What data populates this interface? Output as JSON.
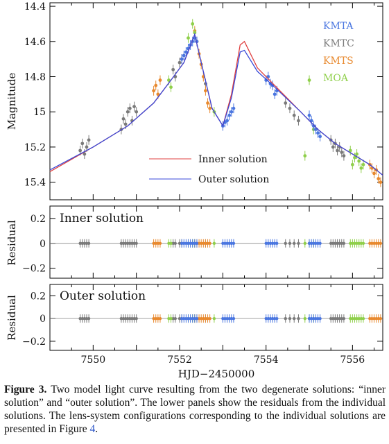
{
  "chart_data": {
    "type": "scatter",
    "xlabel": "HJD−2450000",
    "xlim": [
      7549.0,
      7556.7
    ],
    "xticks": [
      "7550",
      "7552",
      "7554",
      "7556"
    ],
    "xtick_values": [
      7550,
      7552,
      7554,
      7556
    ],
    "panels": [
      {
        "name": "light-curve",
        "ylabel": "Magnitude",
        "ylim": [
          15.5,
          14.38
        ],
        "yticks": [
          "14.4",
          "14.6",
          "14.8",
          "15",
          "15.2",
          "15.4"
        ],
        "ytick_values": [
          14.4,
          14.6,
          14.8,
          15.0,
          15.2,
          15.4
        ],
        "legend": {
          "placement": "top-right",
          "entries": [
            {
              "label": "KMTA",
              "color": "#4a76e0"
            },
            {
              "label": "KMTC",
              "color": "#7a7a7a"
            },
            {
              "label": "KMTS",
              "color": "#e8892e"
            },
            {
              "label": "MOA",
              "color": "#8fcf4a"
            }
          ]
        },
        "model_legend": {
          "placement": "bottom-center",
          "entries": [
            {
              "label": "Inner solution",
              "color": "#e04040"
            },
            {
              "label": "Outer solution",
              "color": "#3a4ad8"
            }
          ]
        },
        "models": {
          "inner": {
            "x": [
              7549.0,
              7550.0,
              7550.8,
              7551.4,
              7551.8,
              7552.1,
              7552.35,
              7552.5,
              7552.75,
              7553.0,
              7553.2,
              7553.4,
              7553.5,
              7553.8,
              7554.2,
              7554.8,
              7555.2,
              7555.6,
              7556.0,
              7556.4,
              7556.7
            ],
            "y": [
              15.34,
              15.2,
              15.08,
              14.95,
              14.82,
              14.72,
              14.56,
              14.72,
              14.98,
              15.08,
              14.9,
              14.62,
              14.6,
              14.75,
              14.85,
              15.0,
              15.1,
              15.18,
              15.24,
              15.3,
              15.36
            ]
          },
          "outer": {
            "x": [
              7549.0,
              7550.0,
              7550.8,
              7551.4,
              7551.8,
              7552.1,
              7552.35,
              7552.5,
              7552.75,
              7553.0,
              7553.2,
              7553.4,
              7553.5,
              7553.8,
              7554.2,
              7554.8,
              7555.2,
              7555.6,
              7556.0,
              7556.4,
              7556.7
            ],
            "y": [
              15.33,
              15.2,
              15.08,
              14.95,
              14.82,
              14.72,
              14.56,
              14.72,
              14.98,
              15.08,
              14.92,
              14.66,
              14.65,
              14.77,
              14.86,
              15.0,
              15.1,
              15.18,
              15.24,
              15.3,
              15.36
            ]
          }
        },
        "series": [
          {
            "name": "KMTC",
            "x": [
              7549.7,
              7549.75,
              7549.8,
              7549.85,
              7549.9,
              7550.65,
              7550.7,
              7550.75,
              7550.8,
              7550.85,
              7550.9,
              7550.95,
              7551.0,
              7551.85,
              7551.9,
              7552.0,
              7552.05,
              7552.6,
              7554.45,
              7554.55,
              7554.65,
              7554.75,
              7555.5,
              7555.55,
              7555.6,
              7555.65,
              7555.7,
              7555.75,
              7555.8
            ],
            "y": [
              15.22,
              15.18,
              15.24,
              15.2,
              15.16,
              15.1,
              15.04,
              15.07,
              15.0,
              14.98,
              15.05,
              14.97,
              15.0,
              14.76,
              14.8,
              14.72,
              14.7,
              14.84,
              14.95,
              14.98,
              15.02,
              15.05,
              15.16,
              15.2,
              15.18,
              15.22,
              15.2,
              15.23,
              15.25
            ]
          },
          {
            "name": "KMTS",
            "x": [
              7551.4,
              7551.45,
              7551.5,
              7551.55,
              7552.35,
              7552.4,
              7552.45,
              7552.5,
              7552.55,
              7552.6,
              7552.65,
              7552.7,
              7556.4,
              7556.45,
              7556.5,
              7556.55,
              7556.6,
              7556.65
            ],
            "y": [
              14.88,
              14.85,
              14.9,
              14.82,
              14.54,
              14.6,
              14.67,
              14.73,
              14.8,
              14.88,
              14.95,
              14.98,
              15.3,
              15.32,
              15.35,
              15.33,
              15.38,
              15.4
            ]
          },
          {
            "name": "MOA",
            "x": [
              7551.75,
              7551.8,
              7552.2,
              7552.3,
              7552.35,
              7552.8,
              7554.9,
              7555.0,
              7555.1,
              7555.95,
              7556.0,
              7556.05,
              7556.1,
              7556.15,
              7556.2,
              7556.25
            ],
            "y": [
              14.82,
              14.86,
              14.58,
              14.5,
              14.55,
              15.0,
              15.25,
              14.82,
              15.1,
              15.22,
              15.3,
              15.26,
              15.24,
              15.28,
              15.32,
              15.3
            ]
          },
          {
            "name": "KMTA",
            "x": [
              7552.05,
              7552.1,
              7552.15,
              7552.2,
              7552.25,
              7552.3,
              7552.35,
              7552.4,
              7553.0,
              7553.05,
              7553.1,
              7553.15,
              7553.2,
              7553.25,
              7554.0,
              7554.05,
              7554.1,
              7554.15,
              7554.2,
              7554.25,
              7555.0,
              7555.05,
              7555.1,
              7555.15,
              7555.2,
              7555.25
            ],
            "y": [
              14.7,
              14.68,
              14.66,
              14.64,
              14.62,
              14.6,
              14.58,
              14.6,
              15.08,
              15.06,
              15.05,
              15.02,
              15.0,
              14.98,
              14.82,
              14.8,
              14.84,
              14.85,
              14.9,
              14.88,
              15.02,
              15.05,
              15.08,
              15.1,
              15.12,
              15.14
            ]
          }
        ]
      },
      {
        "name": "inner-residual",
        "ylabel": "Residual",
        "annotation": "Inner solution",
        "ylim": [
          -0.28,
          0.3
        ],
        "yticks": [
          "0.2",
          "0",
          "−0.2"
        ],
        "ytick_values": [
          0.2,
          0.0,
          -0.2
        ]
      },
      {
        "name": "outer-residual",
        "ylabel": "Residual",
        "annotation": "Outer solution",
        "ylim": [
          -0.28,
          0.3
        ],
        "yticks": [
          "0.2",
          "0",
          "−0.2"
        ],
        "ytick_values": [
          0.2,
          0.0,
          -0.2
        ]
      }
    ]
  },
  "caption": {
    "label": "Figure 3.",
    "text": " Two model light curve resulting from the two degenerate solutions: “inner solution” and “outer solution”. The lower panels show the residuals from the individual solutions. The lens-system configurations corresponding to the individual solutions are presented in Figure ",
    "ref": "4",
    "end": "."
  }
}
